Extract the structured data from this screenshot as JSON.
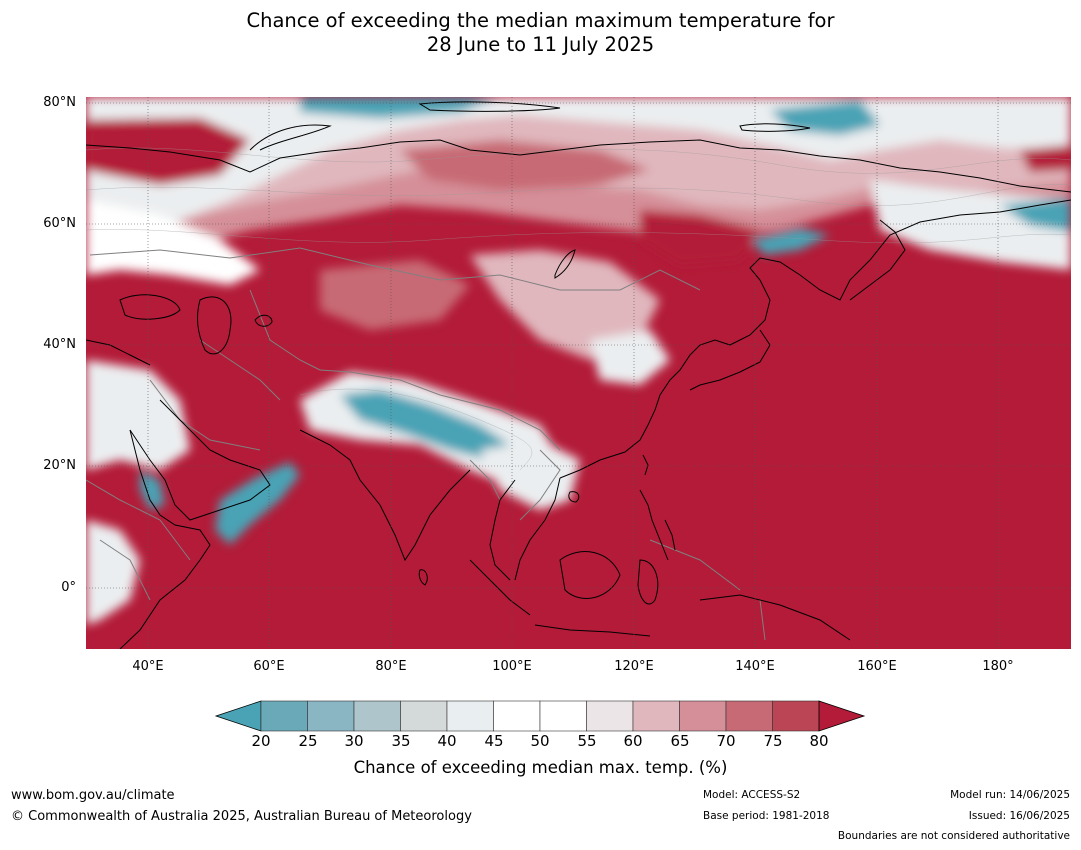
{
  "title": {
    "line1": "Chance of exceeding the median maximum temperature for",
    "line2": "28 June to 11 July 2025"
  },
  "axes": {
    "lat_labels": [
      "80°N",
      "60°N",
      "40°N",
      "20°N",
      "0°"
    ],
    "lon_labels": [
      "40°E",
      "60°E",
      "80°E",
      "100°E",
      "120°E",
      "140°E",
      "160°E",
      "180°"
    ],
    "lat_range": [
      -10,
      80
    ],
    "lon_range": [
      30,
      192
    ]
  },
  "colorbar": {
    "ticks": [
      "20",
      "25",
      "30",
      "35",
      "40",
      "45",
      "50",
      "55",
      "60",
      "65",
      "70",
      "75",
      "80"
    ],
    "colors": [
      "#4aa3b5",
      "#6aa9b8",
      "#8ab5c3",
      "#adc5cb",
      "#d4d9da",
      "#e9eef0",
      "#ffffff",
      "#ffffff",
      "#ebe5e7",
      "#e0b7bd",
      "#d58f98",
      "#c76a75",
      "#bb4554",
      "#b31b38"
    ],
    "label": "Chance of exceeding median max. temp. (%)"
  },
  "colors": {
    "high": "#b31b38",
    "mid_high": "#c76a75",
    "light_pink": "#e0b7bd",
    "near_white": "#ebeef0",
    "teal": "#4aa3b5",
    "border_coast": "#000000",
    "border_country": "#808080"
  },
  "footer": {
    "website": "www.bom.gov.au/climate",
    "copyright": "© Commonwealth of Australia 2025, Australian Bureau of Meteorology",
    "model": "Model: ACCESS-S2",
    "base_period": "Base period: 1981-2018",
    "model_run": "Model run: 14/06/2025",
    "issued": "Issued: 16/06/2025",
    "disclaimer": "Boundaries are not considered authoritative"
  }
}
